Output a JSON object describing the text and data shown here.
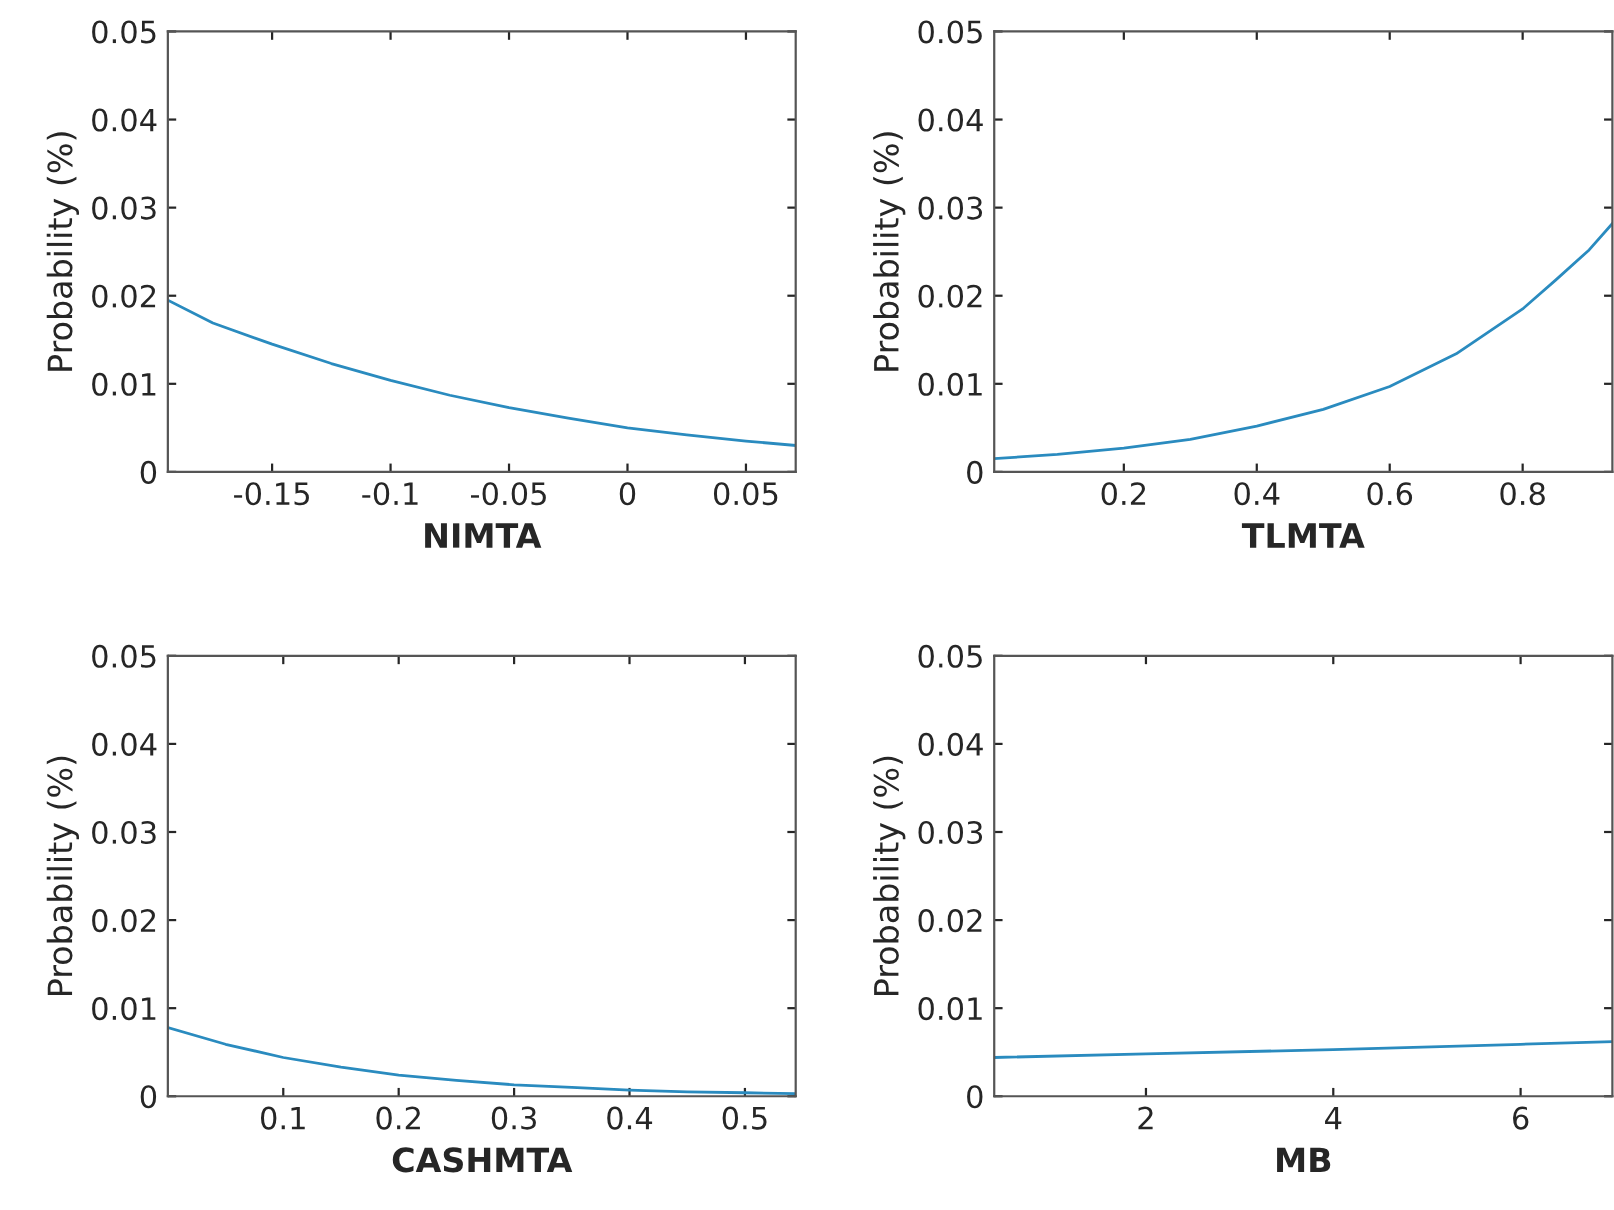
{
  "chart_data": [
    {
      "type": "line",
      "xlabel": "NIMTA",
      "ylabel": "Probability (%)",
      "xlim": [
        -0.194,
        0.071
      ],
      "xticks": [
        -0.15,
        -0.1,
        -0.05,
        0,
        0.05
      ],
      "ylim": [
        0,
        0.05
      ],
      "yticks": [
        0,
        0.01,
        0.02,
        0.03,
        0.04,
        0.05
      ],
      "grid": false,
      "series": [
        {
          "color": "#2a8bbf",
          "x": [
            -0.194,
            -0.175,
            -0.15,
            -0.125,
            -0.1,
            -0.075,
            -0.05,
            -0.025,
            0,
            0.025,
            0.05,
            0.071
          ],
          "values": [
            0.0195,
            0.0169,
            0.0145,
            0.0123,
            0.0104,
            0.0087,
            0.0073,
            0.0061,
            0.005,
            0.0042,
            0.0035,
            0.003
          ]
        }
      ]
    },
    {
      "type": "line",
      "xlabel": "TLMTA",
      "ylabel": "Probability (%)",
      "xlim": [
        0.005,
        0.935
      ],
      "xticks": [
        0.2,
        0.4,
        0.6,
        0.8
      ],
      "ylim": [
        0,
        0.05
      ],
      "yticks": [
        0,
        0.01,
        0.02,
        0.03,
        0.04,
        0.05
      ],
      "grid": false,
      "series": [
        {
          "color": "#2a8bbf",
          "x": [
            0.005,
            0.1,
            0.2,
            0.3,
            0.4,
            0.5,
            0.6,
            0.7,
            0.8,
            0.85,
            0.9,
            0.935
          ],
          "values": [
            0.0015,
            0.002,
            0.0027,
            0.0037,
            0.0052,
            0.0071,
            0.0097,
            0.0134,
            0.0185,
            0.0218,
            0.0252,
            0.0282
          ]
        }
      ]
    },
    {
      "type": "line",
      "xlabel": "CASHMTA",
      "ylabel": "Probability (%)",
      "xlim": [
        0.0,
        0.544
      ],
      "xticks": [
        0.1,
        0.2,
        0.3,
        0.4,
        0.5
      ],
      "ylim": [
        0,
        0.05
      ],
      "yticks": [
        0,
        0.01,
        0.02,
        0.03,
        0.04,
        0.05
      ],
      "grid": false,
      "series": [
        {
          "color": "#2a8bbf",
          "x": [
            0.0,
            0.05,
            0.1,
            0.15,
            0.2,
            0.25,
            0.3,
            0.35,
            0.4,
            0.45,
            0.5,
            0.544
          ],
          "values": [
            0.0078,
            0.0059,
            0.0044,
            0.0033,
            0.0024,
            0.0018,
            0.0013,
            0.001,
            0.0007,
            0.0005,
            0.0004,
            0.0003
          ]
        }
      ]
    },
    {
      "type": "line",
      "xlabel": "MB",
      "ylabel": "Probability (%)",
      "xlim": [
        0.38,
        6.98
      ],
      "xticks": [
        2,
        4,
        6
      ],
      "ylim": [
        0,
        0.05
      ],
      "yticks": [
        0,
        0.01,
        0.02,
        0.03,
        0.04,
        0.05
      ],
      "grid": false,
      "series": [
        {
          "color": "#2a8bbf",
          "x": [
            0.38,
            2,
            4,
            6,
            6.98
          ],
          "values": [
            0.0044,
            0.0048,
            0.0053,
            0.0059,
            0.0062
          ]
        }
      ]
    }
  ]
}
